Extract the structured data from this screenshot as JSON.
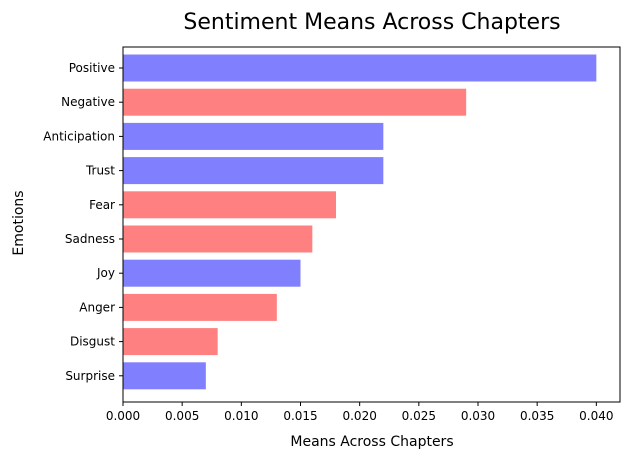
{
  "chart_data": {
    "type": "bar",
    "orientation": "horizontal",
    "title": "Sentiment Means Across Chapters",
    "xlabel": "Means Across Chapters",
    "ylabel": "Emotions",
    "categories": [
      "Positive",
      "Negative",
      "Anticipation",
      "Trust",
      "Fear",
      "Sadness",
      "Joy",
      "Anger",
      "Disgust",
      "Surprise"
    ],
    "values": [
      0.04,
      0.029,
      0.022,
      0.022,
      0.018,
      0.016,
      0.015,
      0.013,
      0.008,
      0.007
    ],
    "bar_colors": [
      "#8080ff",
      "#ff8080",
      "#8080ff",
      "#8080ff",
      "#ff8080",
      "#ff8080",
      "#8080ff",
      "#ff8080",
      "#ff8080",
      "#8080ff"
    ],
    "xlim": [
      0,
      0.042
    ],
    "xticks": [
      "0.000",
      "0.005",
      "0.010",
      "0.015",
      "0.020",
      "0.025",
      "0.030",
      "0.035",
      "0.040"
    ],
    "grid": false,
    "legend": false
  }
}
